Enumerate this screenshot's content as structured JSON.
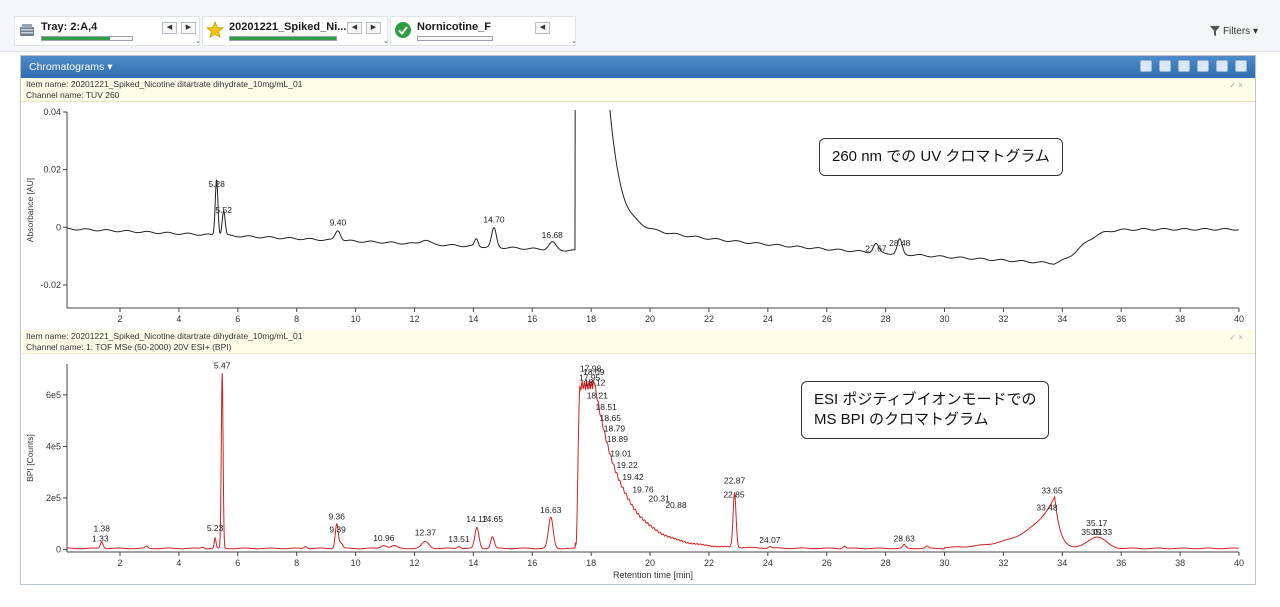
{
  "toolbar": {
    "items": [
      {
        "label": "Tray: 2:A,4",
        "icon": "tray-icon",
        "progress": 0.75
      },
      {
        "label": "20201221_Spiked_Ni...",
        "icon": "star-icon",
        "progress": 1.0
      },
      {
        "label": "Nornicotine_F",
        "icon": "check-icon",
        "progress": 0.0
      }
    ],
    "filters_label": "Filters"
  },
  "panel": {
    "title": "Chromatograms ▾"
  },
  "chart_data": [
    {
      "type": "line",
      "item_name": "Item name: 20201221_Spiked_Nicotine ditartrate dihydrate_10mg/mL_01",
      "channel_name": "Channel name: TUV 260",
      "ylabel": "Absorbance [AU]",
      "xlim": [
        0.2,
        40
      ],
      "ylim": [
        -0.028,
        0.04
      ],
      "color": "#222222",
      "xticks": [
        2,
        4,
        6,
        8,
        10,
        12,
        14,
        16,
        18,
        20,
        22,
        24,
        26,
        28,
        30,
        32,
        34,
        36,
        38,
        40
      ],
      "yticks": [
        -0.02,
        0,
        0.02,
        0.04
      ],
      "ytick_labels": [
        "-0.02",
        "0",
        "0.02",
        "0.04"
      ],
      "peak_labels": [
        {
          "x": 5.28,
          "y": 0.013,
          "text": "5.28"
        },
        {
          "x": 5.52,
          "y": 0.004,
          "text": "5.52"
        },
        {
          "x": 9.4,
          "y": -0.0004,
          "text": "9.40"
        },
        {
          "x": 14.7,
          "y": 0.0006,
          "text": "14.70"
        },
        {
          "x": 16.68,
          "y": -0.0047,
          "text": "16.68"
        },
        {
          "x": 27.67,
          "y": -0.0095,
          "text": "27.67"
        },
        {
          "x": 28.48,
          "y": -0.0075,
          "text": "28.48"
        }
      ],
      "annotation": "260 nm での UV クロマトグラム"
    },
    {
      "type": "line",
      "item_name": "Item name: 20201221_Spiked_Nicotine ditartrate dihydrate_10mg/mL_01",
      "channel_name": "Channel name: 1: TOF MSe (50-2000) 20V ESI+ (BPI)",
      "ylabel": "BPI [Counts]",
      "xlabel": "Retention time [min]",
      "xlim": [
        0.2,
        40
      ],
      "ylim": [
        -10000,
        720000
      ],
      "color": "#d42020",
      "xticks": [
        2,
        4,
        6,
        8,
        10,
        12,
        14,
        16,
        18,
        20,
        22,
        24,
        26,
        28,
        30,
        32,
        34,
        36,
        38,
        40
      ],
      "yticks": [
        0,
        200000,
        400000,
        600000
      ],
      "ytick_labels": [
        "0",
        "2e5",
        "4e5",
        "6e5"
      ],
      "peak_labels": [
        {
          "x": 1.33,
          "y": 20000,
          "text": "1.33"
        },
        {
          "x": 1.38,
          "y": 58000,
          "text": "1.38"
        },
        {
          "x": 5.23,
          "y": 60000,
          "text": "5.23"
        },
        {
          "x": 5.47,
          "y": 690000,
          "text": "5.47"
        },
        {
          "x": 9.36,
          "y": 105000,
          "text": "9.36"
        },
        {
          "x": 9.39,
          "y": 55000,
          "text": "9.39"
        },
        {
          "x": 10.96,
          "y": 22000,
          "text": "10.96"
        },
        {
          "x": 12.37,
          "y": 42000,
          "text": "12.37"
        },
        {
          "x": 13.51,
          "y": 18000,
          "text": "13.51"
        },
        {
          "x": 14.12,
          "y": 95000,
          "text": "14.12"
        },
        {
          "x": 14.65,
          "y": 95000,
          "text": "14.65"
        },
        {
          "x": 16.63,
          "y": 130000,
          "text": "16.63"
        },
        {
          "x": 17.95,
          "y": 645000,
          "text": "17.95"
        },
        {
          "x": 17.98,
          "y": 680000,
          "text": "17.98"
        },
        {
          "x": 18.09,
          "y": 665000,
          "text": "18.09"
        },
        {
          "x": 18.12,
          "y": 625000,
          "text": "18.12"
        },
        {
          "x": 18.21,
          "y": 575000,
          "text": "18.21"
        },
        {
          "x": 18.51,
          "y": 530000,
          "text": "18.51"
        },
        {
          "x": 18.65,
          "y": 487000,
          "text": "18.65"
        },
        {
          "x": 18.79,
          "y": 447000,
          "text": "18.79"
        },
        {
          "x": 18.89,
          "y": 405000,
          "text": "18.89"
        },
        {
          "x": 19.01,
          "y": 350000,
          "text": "19.01"
        },
        {
          "x": 19.22,
          "y": 305000,
          "text": "19.22"
        },
        {
          "x": 19.42,
          "y": 257000,
          "text": "19.42"
        },
        {
          "x": 19.76,
          "y": 210000,
          "text": "19.76"
        },
        {
          "x": 20.31,
          "y": 175000,
          "text": "20.31"
        },
        {
          "x": 20.88,
          "y": 150000,
          "text": "20.88"
        },
        {
          "x": 22.85,
          "y": 190000,
          "text": "22.85"
        },
        {
          "x": 22.87,
          "y": 245000,
          "text": "22.87"
        },
        {
          "x": 24.07,
          "y": 14000,
          "text": "24.07"
        },
        {
          "x": 28.63,
          "y": 20000,
          "text": "28.63"
        },
        {
          "x": 33.48,
          "y": 140000,
          "text": "33.48"
        },
        {
          "x": 33.65,
          "y": 205000,
          "text": "33.65"
        },
        {
          "x": 35.01,
          "y": 45000,
          "text": "35.01"
        },
        {
          "x": 35.17,
          "y": 80000,
          "text": "35.17"
        },
        {
          "x": 35.33,
          "y": 45000,
          "text": "35.33"
        }
      ],
      "annotation_lines": [
        "ESI ポジティブイオンモードでの",
        "MS BPI のクロマトグラム"
      ]
    }
  ]
}
